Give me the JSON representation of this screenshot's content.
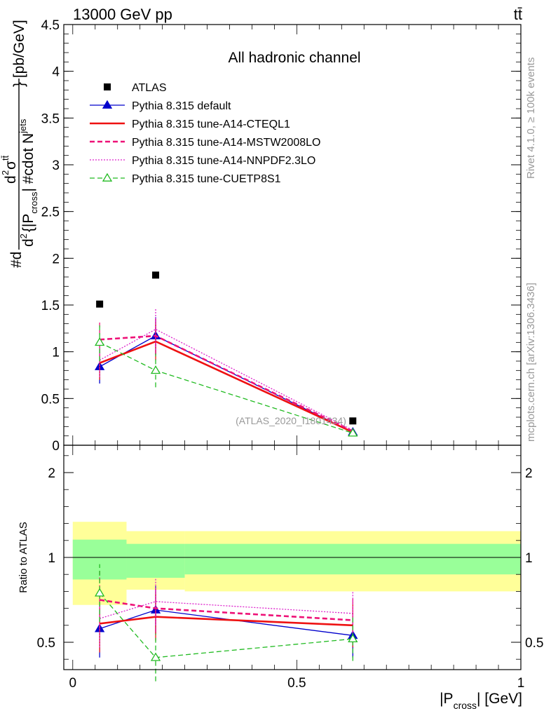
{
  "header": {
    "energy_label": "13000 GeV pp",
    "process_label": "tt̄",
    "channel_label": "All hadronic channel",
    "watermark": "(ATLAS_2020_I1801434)",
    "side_rivet": "Rivet 4.1.0, ≥ 100k events",
    "side_mcplots": "mcplots.cern.ch [arXiv:1306.3436]"
  },
  "axes": {
    "ylabel_main": "#d d²σ^tt̄ / d²{|P_cross| #cdot N^jets} [pb/GeV]",
    "ylabel_main_parts": {
      "hash_d": "#d",
      "frac_num": "d",
      "frac_num_sup": "2",
      "sigma": "σ",
      "sigma_sup": "tt̄",
      "frac_den_lead": "d",
      "frac_den_sup": "2",
      "frac_den_body": "{|P",
      "frac_den_sub": "cross",
      "frac_den_body2": "| #cdot N",
      "frac_den_sup2": "jets",
      "brace_close": "} [pb/GeV]"
    },
    "ylabel_ratio": "Ratio to ATLAS",
    "xlabel_main": "|P",
    "xlabel_sub": "cross",
    "xlabel_tail": "| [GeV]",
    "main_ylim": [
      0,
      4.5
    ],
    "main_yticks": [
      "4.5",
      "4",
      "3.5",
      "3",
      "2.5",
      "2",
      "1.5",
      "1",
      "0.5",
      "0"
    ],
    "ratio_ylim": [
      0.35,
      2.25
    ],
    "ratio_yticks": [
      "2",
      "1",
      "0.5"
    ],
    "xlim": [
      -0.02,
      1.0
    ],
    "xticks": [
      "0",
      "0.5",
      "1"
    ]
  },
  "legend": [
    {
      "label": "ATLAS",
      "color": "#000000",
      "style": "marker-square"
    },
    {
      "label": "Pythia 8.315 default",
      "color": "#0000cc",
      "style": "solid-triangle"
    },
    {
      "label": "Pythia 8.315 tune-A14-CTEQL1",
      "color": "#ee1111",
      "style": "solid-thick"
    },
    {
      "label": "Pythia 8.315 tune-A14-MSTW2008LO",
      "color": "#ee1177",
      "style": "dashed-thick"
    },
    {
      "label": "Pythia 8.315 tune-A14-NNPDF2.3LO",
      "color": "#dd22cc",
      "style": "dotted"
    },
    {
      "label": "Pythia 8.315 tune-CUETP8S1",
      "color": "#22bb22",
      "style": "dashed-open-triangle"
    }
  ],
  "chart_data": {
    "type": "line",
    "title": "All hadronic channel",
    "xlabel": "|P_cross| [GeV]",
    "ylabel": "d²σ / d²{|P_cross| · N_jets} [pb/GeV]",
    "x": [
      0.06,
      0.185,
      0.625
    ],
    "ylim": [
      0,
      4.5
    ],
    "data": {
      "name": "ATLAS",
      "values": [
        1.51,
        1.82,
        0.26
      ],
      "ratio_bands": {
        "edges": [
          0.0,
          0.12,
          0.25,
          1.0
        ],
        "green": [
          [
            0.87,
            1.21
          ],
          [
            0.88,
            1.16
          ],
          [
            0.9,
            1.16
          ]
        ],
        "yellow": [
          [
            0.72,
            1.42
          ],
          [
            0.81,
            1.31
          ],
          [
            0.8,
            1.31
          ]
        ]
      }
    },
    "series": [
      {
        "name": "Pythia 8.315 default",
        "color": "#0000cc",
        "style": "solid",
        "marker": "triangle",
        "values": [
          0.84,
          1.17,
          0.14
        ],
        "errors": [
          0.18,
          0.2,
          0.02
        ],
        "ratio": [
          0.58,
          0.69,
          0.54
        ],
        "ratio_errors": [
          0.17,
          0.14,
          0.13
        ]
      },
      {
        "name": "Pythia 8.315 tune-A14-CTEQL1",
        "color": "#ee1111",
        "style": "solid-thick",
        "marker": "none",
        "values": [
          0.88,
          1.11,
          0.14
        ],
        "errors": [
          0.18,
          0.2,
          0.02
        ],
        "ratio": [
          0.61,
          0.65,
          0.6
        ],
        "ratio_errors": [
          0.17,
          0.14,
          0.13
        ]
      },
      {
        "name": "Pythia 8.315 tune-A14-MSTW2008LO",
        "color": "#ee1177",
        "style": "dashed-thick",
        "marker": "none",
        "values": [
          1.13,
          1.17,
          0.15
        ],
        "errors": [
          0.2,
          0.2,
          0.02
        ],
        "ratio": [
          0.75,
          0.7,
          0.63
        ],
        "ratio_errors": [
          0.17,
          0.14,
          0.13
        ]
      },
      {
        "name": "Pythia 8.315 tune-A14-NNPDF2.3LO",
        "color": "#dd22cc",
        "style": "dotted",
        "marker": "none",
        "values": [
          0.91,
          1.24,
          0.16
        ],
        "errors": [
          0.18,
          0.22,
          0.02
        ],
        "ratio": [
          0.64,
          0.74,
          0.67
        ],
        "ratio_errors": [
          0.17,
          0.14,
          0.13
        ]
      },
      {
        "name": "Pythia 8.315 tune-CUETP8S1",
        "color": "#22bb22",
        "style": "dashed",
        "marker": "open-triangle",
        "values": [
          1.1,
          0.8,
          0.13
        ],
        "errors": [
          0.2,
          0.18,
          0.02
        ],
        "ratio": [
          0.79,
          0.41,
          0.52
        ],
        "ratio_errors": [
          0.17,
          0.14,
          0.13
        ]
      }
    ]
  }
}
